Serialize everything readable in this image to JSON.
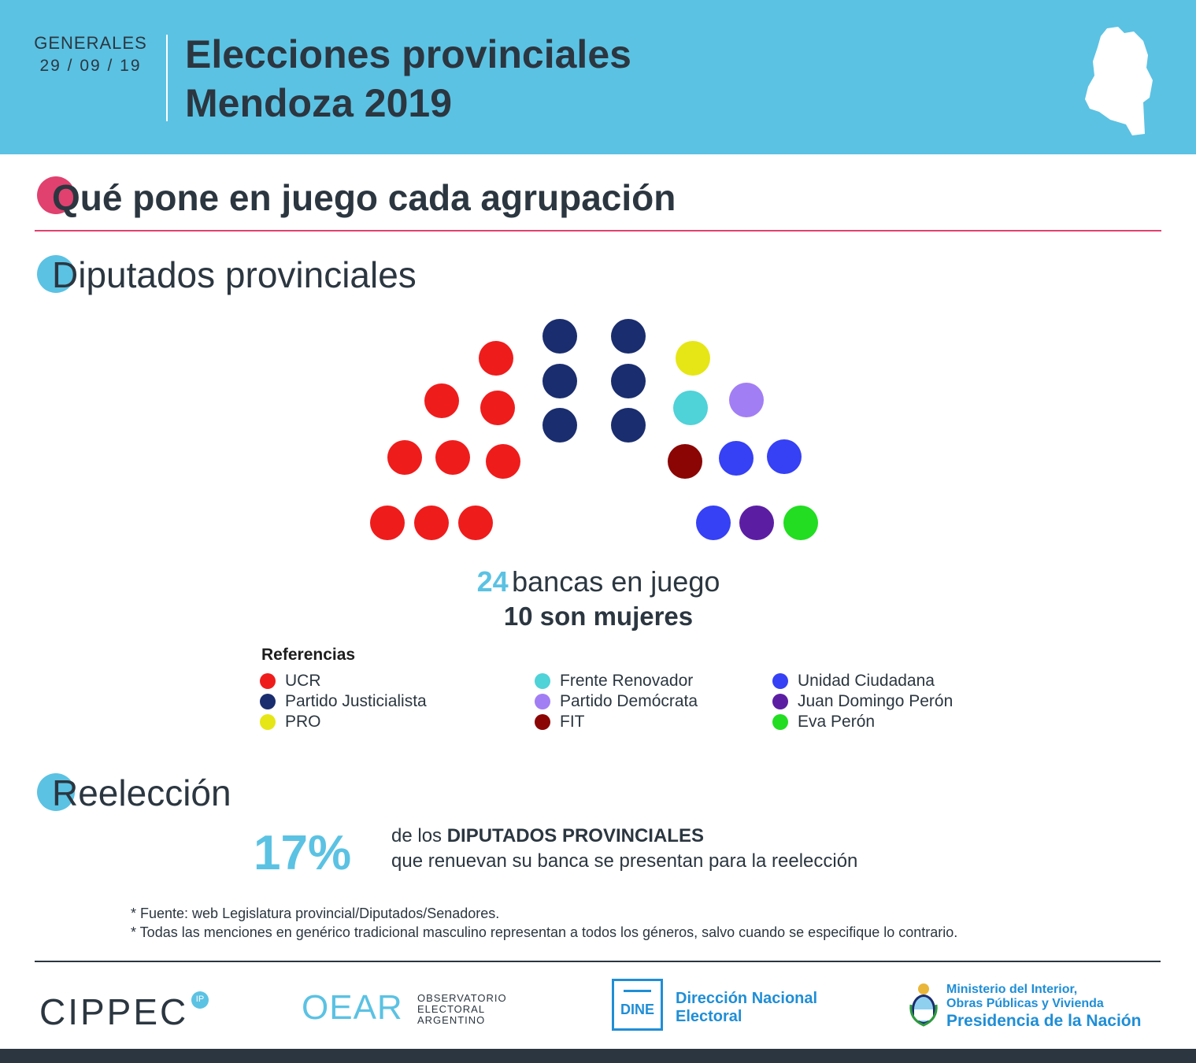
{
  "header": {
    "election_type": "GENERALES",
    "date": "29 / 09 / 19",
    "title_line1": "Elecciones provinciales",
    "title_line2": "Mendoza 2019"
  },
  "sections": {
    "main_title": "Qué pone en juego cada agrupación",
    "diputados_title": "Diputados provinciales",
    "reeleccion_title": "Reelección"
  },
  "chart_data": {
    "type": "parliament",
    "title": "Diputados provinciales",
    "total_seats": 24,
    "women_seats": 10,
    "series": [
      {
        "name": "UCR",
        "seats": 9,
        "color": "#ef1c1c"
      },
      {
        "name": "Partido Justicialista",
        "seats": 6,
        "color": "#1a2d6e"
      },
      {
        "name": "PRO",
        "seats": 1,
        "color": "#e6e616"
      },
      {
        "name": "Frente Renovador",
        "seats": 1,
        "color": "#4fd2d8"
      },
      {
        "name": "Partido Demócrata",
        "seats": 1,
        "color": "#a27ef4"
      },
      {
        "name": "FIT",
        "seats": 1,
        "color": "#8b0505"
      },
      {
        "name": "Unidad Ciudadana",
        "seats": 3,
        "color": "#3640f4"
      },
      {
        "name": "Juan Domingo Perón",
        "seats": 1,
        "color": "#5b1ea3"
      },
      {
        "name": "Eva Perón",
        "seats": 1,
        "color": "#22dd22"
      }
    ]
  },
  "summary": {
    "seats_number": "24",
    "seats_label": "bancas en juego",
    "women_line": "10 son mujeres"
  },
  "legend": {
    "title": "Referencias",
    "items": [
      {
        "label": "UCR",
        "color": "#ef1c1c"
      },
      {
        "label": "Partido Justicialista",
        "color": "#1a2d6e"
      },
      {
        "label": "PRO",
        "color": "#e6e616"
      },
      {
        "label": "Frente Renovador",
        "color": "#4fd2d8"
      },
      {
        "label": "Partido Demócrata",
        "color": "#a27ef4"
      },
      {
        "label": "FIT",
        "color": "#8b0505"
      },
      {
        "label": "Unidad Ciudadana",
        "color": "#3640f4"
      },
      {
        "label": "Juan Domingo Perón",
        "color": "#5b1ea3"
      },
      {
        "label": "Eva Perón",
        "color": "#22dd22"
      }
    ]
  },
  "reeleccion": {
    "percent": "17%",
    "text_prefix": "de los",
    "text_bold": "DIPUTADOS PROVINCIALES",
    "text_line2": "que renuevan su banca se presentan para la reelección"
  },
  "notes": [
    "* Fuente: web Legislatura provincial/Diputados/Senadores.",
    "* Todas las menciones en genérico tradicional masculino representan a todos los géneros, salvo cuando se especifique lo contrario."
  ],
  "footer": {
    "cippec": "CIPPEC",
    "cippec_badge": "IP",
    "oear": "OEAR",
    "oear_sub1": "OBSERVATORIO",
    "oear_sub2": "ELECTORAL",
    "oear_sub3": "ARGENTINO",
    "dine_box": "DINE",
    "dine_name1": "Dirección Nacional",
    "dine_name2": "Electoral",
    "min_line1": "Ministerio del Interior,",
    "min_line2": "Obras Públicas y Vivienda",
    "min_line3": "Presidencia de la Nación"
  },
  "colors": {
    "accent_blue": "#5bc2e3",
    "accent_pink": "#e0416f",
    "text_dark": "#2b3640",
    "institution_blue": "#1f8ed6"
  }
}
